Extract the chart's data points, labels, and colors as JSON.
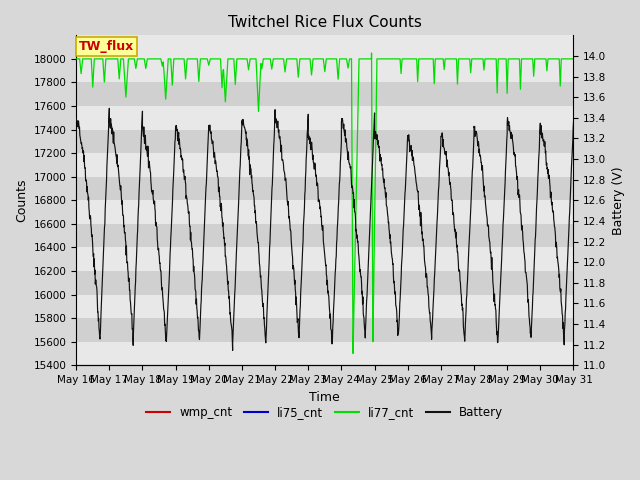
{
  "title": "Twitchel Rice Flux Counts",
  "xlabel": "Time",
  "ylabel_left": "Counts",
  "ylabel_right": "Battery (V)",
  "ylim_left": [
    15400,
    18200
  ],
  "ylim_right": [
    11.0,
    14.2
  ],
  "xtick_labels": [
    "May 16",
    "May 17",
    "May 18",
    "May 19",
    "May 20",
    "May 21",
    "May 22",
    "May 23",
    "May 24",
    "May 25",
    "May 26",
    "May 27",
    "May 28",
    "May 29",
    "May 30",
    "May 31"
  ],
  "yticks_left": [
    15400,
    15600,
    15800,
    16000,
    16200,
    16400,
    16600,
    16800,
    17000,
    17200,
    17400,
    17600,
    17800,
    18000
  ],
  "yticks_right": [
    11.0,
    11.2,
    11.4,
    11.6,
    11.8,
    12.0,
    12.2,
    12.4,
    12.6,
    12.8,
    13.0,
    13.2,
    13.4,
    13.6,
    13.8,
    14.0
  ],
  "fig_bg_color": "#d8d8d8",
  "plot_bg_color": "#e8e8e8",
  "band_color_light": "#e8e8e8",
  "band_color_dark": "#d0d0d0",
  "annotation_box": {
    "text": "TW_flux",
    "color": "#cc0000",
    "bg": "#ffff99",
    "edge": "#ccaa00"
  },
  "li77_color": "#00dd00",
  "li75_color": "#0000cc",
  "wmp_color": "#cc0000",
  "battery_color": "#111111",
  "legend_items": [
    "wmp_cnt",
    "li75_cnt",
    "li77_cnt",
    "Battery"
  ],
  "title_fontsize": 11,
  "axis_fontsize": 9,
  "tick_fontsize": 7.5,
  "legend_fontsize": 8.5,
  "annotation_fontsize": 9
}
